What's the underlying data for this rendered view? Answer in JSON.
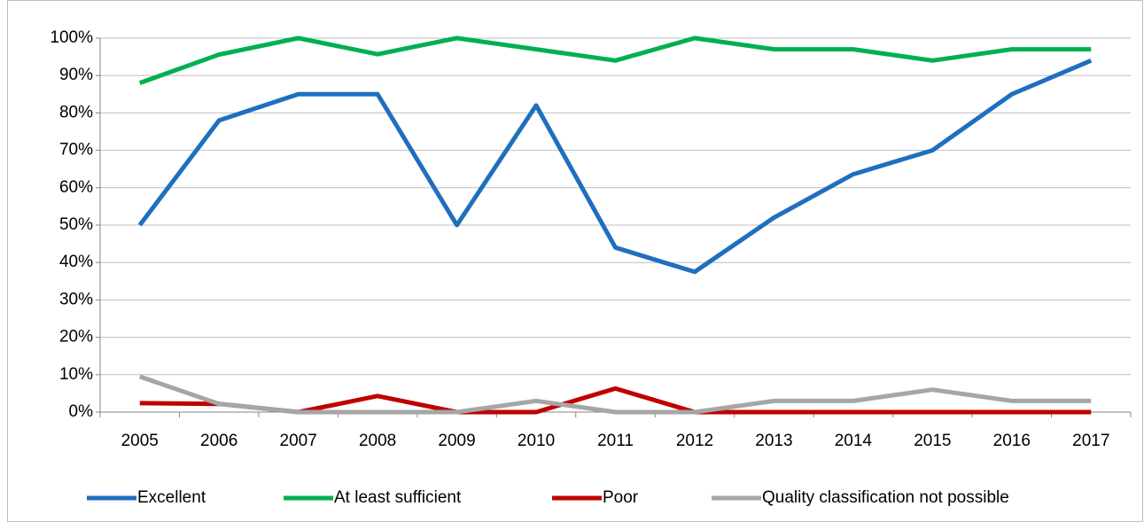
{
  "chart_data": {
    "type": "line",
    "categories": [
      "2005",
      "2006",
      "2007",
      "2008",
      "2009",
      "2010",
      "2011",
      "2012",
      "2013",
      "2014",
      "2015",
      "2016",
      "2017"
    ],
    "series": [
      {
        "name": "Excellent",
        "color": "#1f6fbf",
        "values": [
          50,
          78,
          85,
          85,
          50,
          82,
          44,
          37.5,
          52,
          63.6,
          70,
          85,
          94
        ]
      },
      {
        "name": "At least sufficient",
        "color": "#00b050",
        "values": [
          88,
          95.6,
          100,
          95.7,
          100,
          97,
          94,
          100,
          97,
          97,
          94,
          97,
          97
        ]
      },
      {
        "name": "Poor",
        "color": "#c00000",
        "values": [
          2.4,
          2.2,
          0,
          4.3,
          0,
          0,
          6.3,
          0,
          0,
          0,
          0,
          0,
          0
        ]
      },
      {
        "name": "Quality classification not possible",
        "color": "#a6a6a6",
        "values": [
          9.5,
          2.2,
          0,
          0,
          0,
          3,
          0,
          0,
          3,
          3,
          6,
          3,
          3
        ]
      }
    ],
    "ylim": [
      0,
      100
    ],
    "yticks": [
      {
        "value": 0,
        "label": "0%"
      },
      {
        "value": 10,
        "label": "10%"
      },
      {
        "value": 20,
        "label": "20%"
      },
      {
        "value": 30,
        "label": "30%"
      },
      {
        "value": 40,
        "label": "40%"
      },
      {
        "value": 50,
        "label": "50%"
      },
      {
        "value": 60,
        "label": "60%"
      },
      {
        "value": 70,
        "label": "70%"
      },
      {
        "value": 80,
        "label": "80%"
      },
      {
        "value": 90,
        "label": "90%"
      },
      {
        "value": 100,
        "label": "100%"
      }
    ],
    "grid": true,
    "legend": "bottom"
  }
}
